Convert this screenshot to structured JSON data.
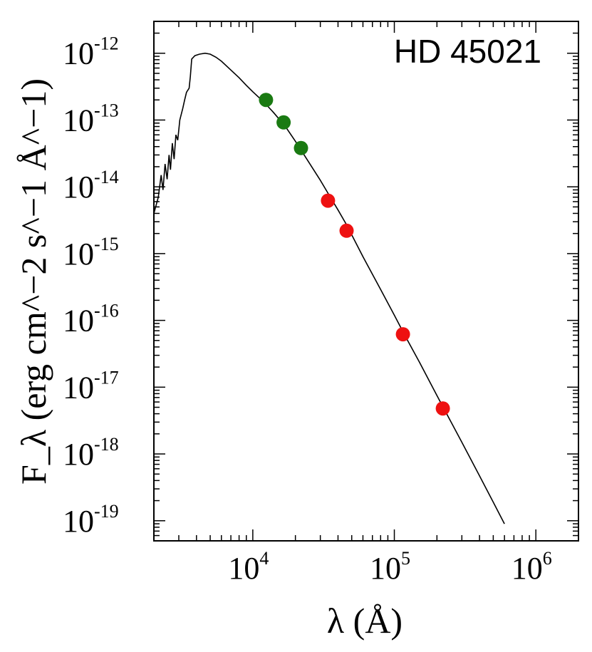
{
  "chart_data": {
    "type": "scatter",
    "title": "HD 45021",
    "xlabel": "λ (Å)",
    "ylabel": "F_λ (erg cm^−2 s^−1 Å^−1)",
    "xscale": "log",
    "yscale": "log",
    "xlim": [
      2000,
      2000000
    ],
    "ylim": [
      5e-20,
      3e-12
    ],
    "grid": false,
    "x_ticks": [
      {
        "value": 10000,
        "base": "10",
        "exp": "4"
      },
      {
        "value": 100000,
        "base": "10",
        "exp": "5"
      },
      {
        "value": 1000000,
        "base": "10",
        "exp": "6"
      }
    ],
    "y_ticks": [
      {
        "value": 1e-12,
        "base": "10",
        "exp": "-12"
      },
      {
        "value": 1e-13,
        "base": "10",
        "exp": "-13"
      },
      {
        "value": 1e-14,
        "base": "10",
        "exp": "-14"
      },
      {
        "value": 1e-15,
        "base": "10",
        "exp": "-15"
      },
      {
        "value": 1e-16,
        "base": "10",
        "exp": "-16"
      },
      {
        "value": 1e-17,
        "base": "10",
        "exp": "-17"
      },
      {
        "value": 1e-18,
        "base": "10",
        "exp": "-18"
      },
      {
        "value": 1e-19,
        "base": "10",
        "exp": "-19"
      }
    ],
    "series": [
      {
        "kind": "line",
        "color": "#000000",
        "points": [
          [
            2000,
            4e-15
          ],
          [
            2150,
            7e-15
          ],
          [
            2250,
            1.5e-14
          ],
          [
            2320,
            9e-15
          ],
          [
            2400,
            2.2e-14
          ],
          [
            2480,
            1.3e-14
          ],
          [
            2560,
            3e-14
          ],
          [
            2620,
            1.8e-14
          ],
          [
            2700,
            4.5e-14
          ],
          [
            2780,
            2.6e-14
          ],
          [
            2860,
            6e-14
          ],
          [
            2950,
            5e-14
          ],
          [
            3050,
            1e-13
          ],
          [
            3200,
            1.5e-13
          ],
          [
            3300,
            2e-13
          ],
          [
            3400,
            2.6e-13
          ],
          [
            3550,
            3e-13
          ],
          [
            3620,
            4.5e-13
          ],
          [
            3700,
            8.2e-13
          ],
          [
            3900,
            9.2e-13
          ],
          [
            4200,
            9.7e-13
          ],
          [
            4600,
            1e-12
          ],
          [
            5000,
            9.7e-13
          ],
          [
            5500,
            8.7e-13
          ],
          [
            6000,
            7.6e-13
          ],
          [
            7000,
            5.6e-13
          ],
          [
            8000,
            4.3e-13
          ],
          [
            9000,
            3.3e-13
          ],
          [
            10000,
            2.65e-13
          ],
          [
            12000,
            1.85e-13
          ],
          [
            14000,
            1.3e-13
          ],
          [
            17000,
            8e-14
          ],
          [
            20000,
            4.8e-14
          ],
          [
            25000,
            2.3e-14
          ],
          [
            30000,
            1.25e-14
          ],
          [
            35000,
            7.2e-15
          ],
          [
            40000,
            4.5e-15
          ],
          [
            46000,
            2.7e-15
          ],
          [
            60000,
            9e-16
          ],
          [
            80000,
            2.9e-16
          ],
          [
            100000,
            1.2e-16
          ],
          [
            120000,
            5.7e-17
          ],
          [
            150000,
            2.4e-17
          ],
          [
            200000,
            7.5e-18
          ],
          [
            230000,
            4.3e-18
          ],
          [
            300000,
            1.5e-18
          ],
          [
            400000,
            4.7e-19
          ],
          [
            500000,
            1.9e-19
          ],
          [
            600000,
            9e-20
          ]
        ]
      },
      {
        "kind": "scatter",
        "color": "#1a7a12",
        "points": [
          [
            12400,
            2e-13
          ],
          [
            16500,
            9.2e-14
          ],
          [
            21900,
            3.8e-14
          ]
        ]
      },
      {
        "kind": "scatter",
        "color": "#ee1111",
        "points": [
          [
            34000,
            6.2e-15
          ],
          [
            46000,
            2.2e-15
          ],
          [
            115000,
            6.2e-17
          ],
          [
            220000,
            4.8e-18
          ]
        ]
      }
    ]
  }
}
